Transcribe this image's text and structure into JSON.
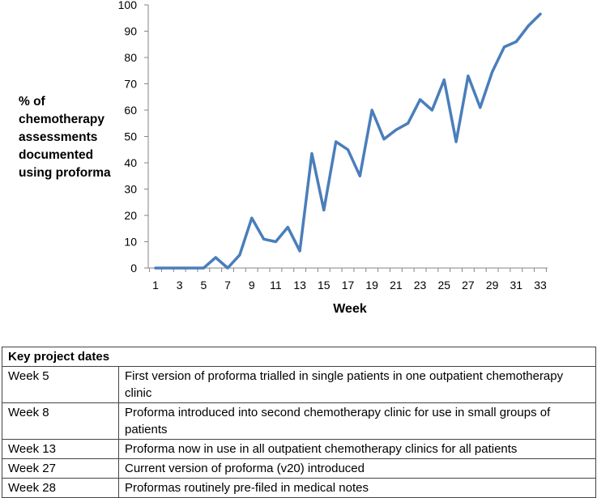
{
  "chart_data": {
    "type": "line",
    "xlabel": "Week",
    "ylabel": [
      "% of",
      "chemotherapy",
      "assessments",
      "documented",
      "using proforma"
    ],
    "ylim": [
      0,
      100
    ],
    "yticks": [
      0,
      10,
      20,
      30,
      40,
      50,
      60,
      70,
      80,
      90,
      100
    ],
    "xticks": [
      1,
      3,
      5,
      7,
      9,
      11,
      13,
      15,
      17,
      19,
      21,
      23,
      25,
      27,
      29,
      31,
      33
    ],
    "xlim": [
      1,
      33
    ],
    "grid": false,
    "line_color": "#4a7ebb",
    "series": [
      {
        "x": [
          1,
          2,
          3,
          4,
          5,
          6,
          7,
          8,
          9,
          10,
          11,
          12,
          13,
          14,
          15,
          16,
          17,
          18,
          19,
          20,
          21,
          22,
          23,
          24,
          25,
          26,
          27,
          28,
          29,
          30,
          31,
          32,
          33
        ],
        "values": [
          0,
          0,
          0,
          0,
          0,
          4,
          0,
          5,
          19,
          11,
          10,
          15.5,
          6.5,
          43.5,
          22,
          48,
          45,
          35,
          60,
          49,
          52.5,
          55,
          64,
          60,
          71.5,
          48,
          73,
          61,
          74.5,
          84,
          86,
          92,
          96.5
        ]
      }
    ]
  },
  "table": {
    "header": "Key project dates",
    "rows": [
      {
        "week": "Week 5",
        "text": "First version of proforma trialled in single patients in one outpatient chemotherapy clinic"
      },
      {
        "week": "Week 8",
        "text": "Proforma introduced into second chemotherapy clinic for use in small groups of patients"
      },
      {
        "week": "Week 13",
        "text": "Proforma now in use in all outpatient chemotherapy clinics for all patients"
      },
      {
        "week": "Week 27",
        "text": "Current version of proforma (v20) introduced"
      },
      {
        "week": "Week 28",
        "text": "Proformas routinely pre-filed in medical notes"
      }
    ]
  }
}
